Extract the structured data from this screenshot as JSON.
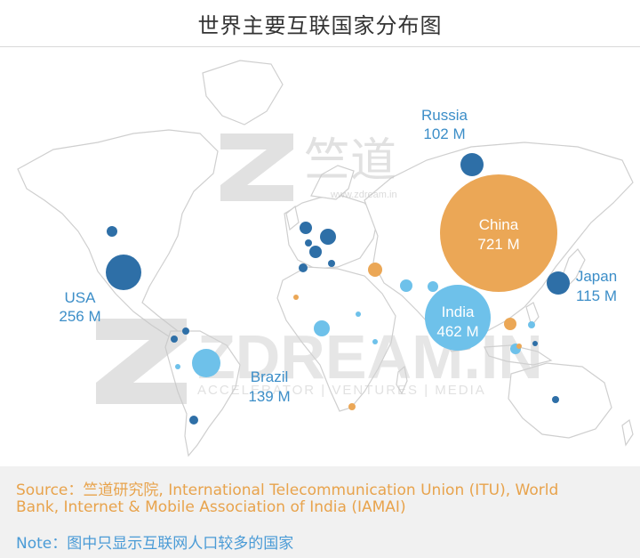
{
  "title": "世界主要互联国家分布图",
  "colors": {
    "dark_blue": "#2e6fa7",
    "light_blue": "#6ec1ea",
    "orange": "#eba756",
    "label_blue": "#3c8ec8",
    "land_stroke": "#cfcfcf",
    "source_text": "#e8a34c",
    "note_text": "#4a9bd6"
  },
  "labels": {
    "russia": {
      "name": "Russia",
      "value": "102 M"
    },
    "china": {
      "name": "China",
      "value": "721 M"
    },
    "japan": {
      "name": "Japan",
      "value": "115 M"
    },
    "usa": {
      "name": "USA",
      "value": "256 M"
    },
    "india": {
      "name": "India",
      "value": "462 M"
    },
    "brazil": {
      "name": "Brazil",
      "value": "139 M"
    }
  },
  "watermark": {
    "cn": "竺道",
    "site": "www.zdream.in",
    "brand": "ZDREAM.IN",
    "tagline": "ACCELERATOR | VENTURES | MEDIA"
  },
  "footer": {
    "source_line1": "Source：竺道研究院, International Telecommunication Union (ITU), World",
    "source_line2": "Bank, Internet & Mobile Association of India (IAMAI)",
    "note": "Note：图中只显示互联网人口较多的国家"
  }
}
